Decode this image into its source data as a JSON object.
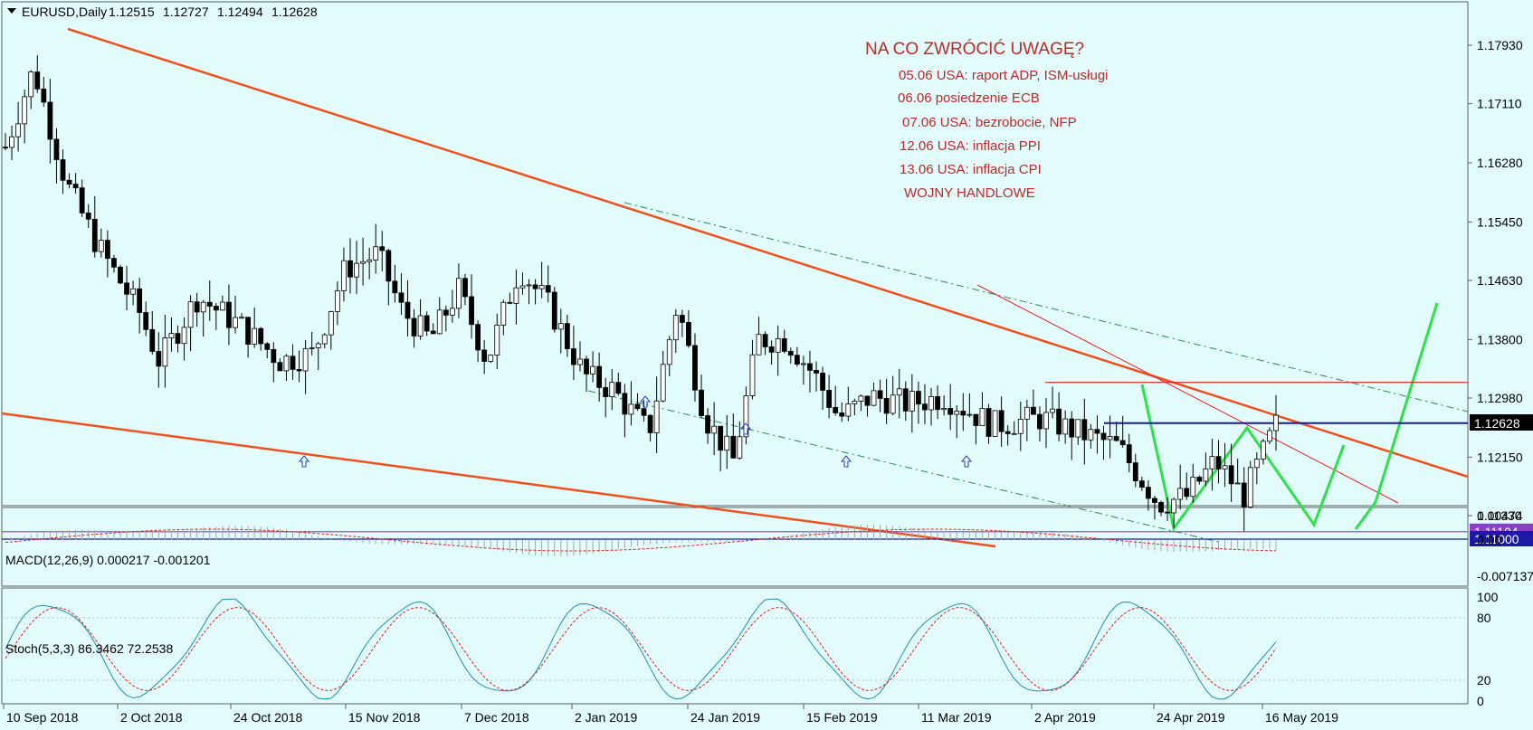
{
  "chart_data": {
    "type": "candlestick",
    "symbol": "EURUSD,Daily",
    "ohlc": [
      "1.12515",
      "1.12727",
      "1.12494",
      "1.12628"
    ],
    "current_price": "1.12628",
    "price_axis": {
      "range": [
        1.1083,
        1.1833
      ],
      "ticks": [
        "1.17930",
        "1.17110",
        "1.16280",
        "1.15450",
        "1.14630",
        "1.13800",
        "1.12980",
        "1.12150",
        "1.11330"
      ]
    },
    "time_axis": {
      "ticks": [
        "10 Sep 2018",
        "2 Oct 2018",
        "24 Oct 2018",
        "15 Nov 2018",
        "7 Dec 2018",
        "2 Jan 2019",
        "24 Jan 2019",
        "15 Feb 2019",
        "11 Mar 2019",
        "2 Apr 2019",
        "24 Apr 2019",
        "16 May 2019"
      ]
    },
    "horizontal_levels": [
      {
        "label": "1.11104",
        "value": 1.11104,
        "color": "#8b3fc8"
      },
      {
        "label": "1.11000",
        "value": 1.11,
        "color": "#1a1aa6"
      },
      {
        "value": 1.12628,
        "color": "#1a1aa6"
      },
      {
        "value": 1.132,
        "color": "#d42020"
      }
    ],
    "annotations": {
      "heading": "NA CO ZWRÓCIĆ UWAGĘ?",
      "lines": [
        "05.06 USA: raport ADP, ISM-usługi",
        "06.06 posiedzenie ECB",
        "07.06 USA: bezrobocie, NFP",
        "12.06 USA: inflacja PPI",
        "13.06 USA: inflacja CPI",
        "WOJNY HANDLOWE"
      ]
    },
    "macd": {
      "label": "MACD(12,26,9) 0.000217 -0.001201",
      "ticks": [
        "0.00474",
        "0.00",
        "-0.007137"
      ]
    },
    "stochastic": {
      "label": "Stoch(5,3,3) 86.3462 72.2538",
      "ticks": [
        "100",
        "80",
        "20",
        "0"
      ]
    },
    "colors": {
      "background": "#e2fcfc",
      "trendline": "#f0501e",
      "pattern": "#2ee04a",
      "bull": "#ffffff",
      "bear": "#000000"
    }
  }
}
